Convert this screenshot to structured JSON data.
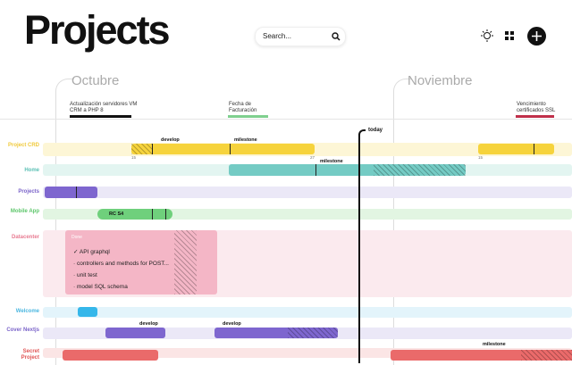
{
  "header": {
    "title": "Projects",
    "search_placeholder": "Search..."
  },
  "timeline": {
    "months": [
      "Octubre",
      "Noviembre"
    ],
    "today": "today",
    "milestones": [
      "Actualización servidores VM CRM a PHP 8",
      "Fecha de Facturación",
      "Vencimiento certificados SSL"
    ],
    "rows": [
      "Project CRD",
      "Home",
      "Projects",
      "Mobile App",
      "Datacenter",
      "Welcome",
      "Cover Nextjs",
      "Secret Project"
    ],
    "bar_labels": [
      "develop",
      "milestone",
      "milestone",
      "RC S4",
      "develop",
      "develop",
      "milestone"
    ],
    "dates": [
      "15",
      "27",
      "15"
    ]
  },
  "checklist": {
    "title": "Done",
    "items": [
      "API graphql",
      "controllers and methods for POST...",
      "unit test",
      "model SQL schema"
    ]
  }
}
